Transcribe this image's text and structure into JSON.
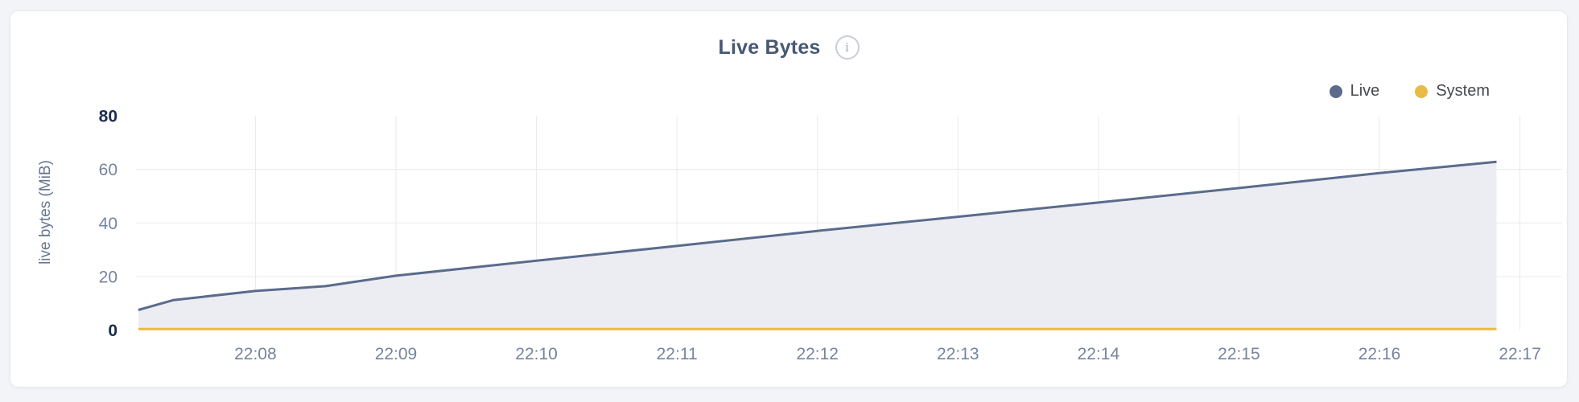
{
  "header": {
    "title": "Live Bytes",
    "info_icon_glyph": "i"
  },
  "legend": {
    "position": "top-right",
    "items": [
      {
        "label": "Live",
        "color": "#5a6b8c"
      },
      {
        "label": "System",
        "color": "#e9ba45"
      }
    ]
  },
  "chart_data": {
    "type": "area",
    "title": "Live Bytes",
    "xlabel": "",
    "ylabel": "live bytes (MiB)",
    "ylim": [
      0,
      80
    ],
    "y_ticks": [
      0,
      20,
      40,
      60,
      80
    ],
    "y_ticks_emphasized": [
      0,
      80
    ],
    "x_ticks": [
      "22:08",
      "22:09",
      "22:10",
      "22:11",
      "22:12",
      "22:13",
      "22:14",
      "22:15",
      "22:16",
      "22:17"
    ],
    "x_domain": [
      "22:07:09",
      "22:17:18"
    ],
    "grid": true,
    "legend_position": "top-right",
    "series": [
      {
        "name": "Live",
        "color": "#5a6b8c",
        "fill": "#ecedf3",
        "points": [
          [
            "22:07:10",
            7.5
          ],
          [
            "22:07:25",
            11.2
          ],
          [
            "22:08:00",
            14.6
          ],
          [
            "22:08:30",
            16.4
          ],
          [
            "22:09:00",
            20.3
          ],
          [
            "22:10:00",
            25.9
          ],
          [
            "22:11:00",
            31.4
          ],
          [
            "22:12:00",
            37.0
          ],
          [
            "22:13:00",
            42.3
          ],
          [
            "22:14:00",
            47.6
          ],
          [
            "22:15:00",
            53.0
          ],
          [
            "22:16:00",
            58.6
          ],
          [
            "22:16:50",
            62.8
          ]
        ]
      },
      {
        "name": "System",
        "color": "#e9ba45",
        "fill": "none",
        "points": [
          [
            "22:07:10",
            0.4
          ],
          [
            "22:08:00",
            0.4
          ],
          [
            "22:09:00",
            0.4
          ],
          [
            "22:10:00",
            0.4
          ],
          [
            "22:11:00",
            0.4
          ],
          [
            "22:12:00",
            0.4
          ],
          [
            "22:13:00",
            0.4
          ],
          [
            "22:14:00",
            0.4
          ],
          [
            "22:15:00",
            0.4
          ],
          [
            "22:16:00",
            0.4
          ],
          [
            "22:16:50",
            0.4
          ]
        ]
      }
    ]
  }
}
